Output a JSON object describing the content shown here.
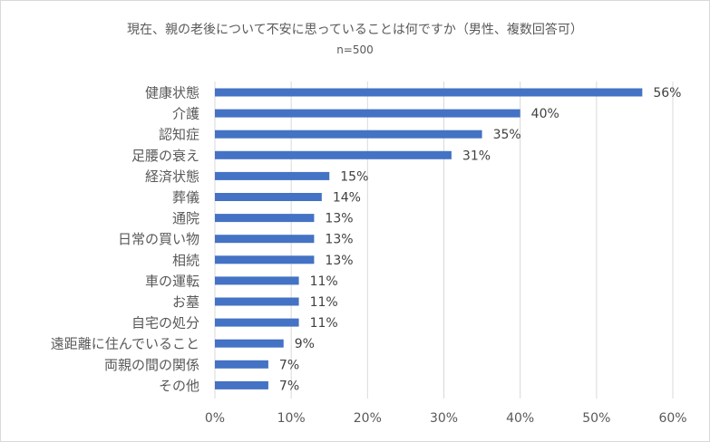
{
  "chart_data": {
    "type": "bar",
    "orientation": "horizontal",
    "title": "現在、親の老後について不安に思っていることは何ですか（男性、複数回答可）",
    "subtitle": "n=500",
    "categories": [
      "健康状態",
      "介護",
      "認知症",
      "足腰の衰え",
      "経済状態",
      "葬儀",
      "通院",
      "日常の買い物",
      "相続",
      "車の運転",
      "お墓",
      "自宅の処分",
      "遠距離に住んでいること",
      "両親の間の関係",
      "その他"
    ],
    "values": [
      56,
      40,
      35,
      31,
      15,
      14,
      13,
      13,
      13,
      11,
      11,
      11,
      9,
      7,
      7
    ],
    "value_labels": [
      "56%",
      "40%",
      "35%",
      "31%",
      "15%",
      "14%",
      "13%",
      "13%",
      "13%",
      "11%",
      "11%",
      "11%",
      "9%",
      "7%",
      "7%"
    ],
    "xlim": [
      0,
      60
    ],
    "xticks": [
      0,
      10,
      20,
      30,
      40,
      50,
      60
    ],
    "xtick_labels": [
      "0%",
      "10%",
      "20%",
      "30%",
      "40%",
      "50%",
      "60%"
    ],
    "grid": true,
    "legend": "none",
    "bar_color": "#4472c4",
    "grid_color": "#d9d9d9"
  }
}
